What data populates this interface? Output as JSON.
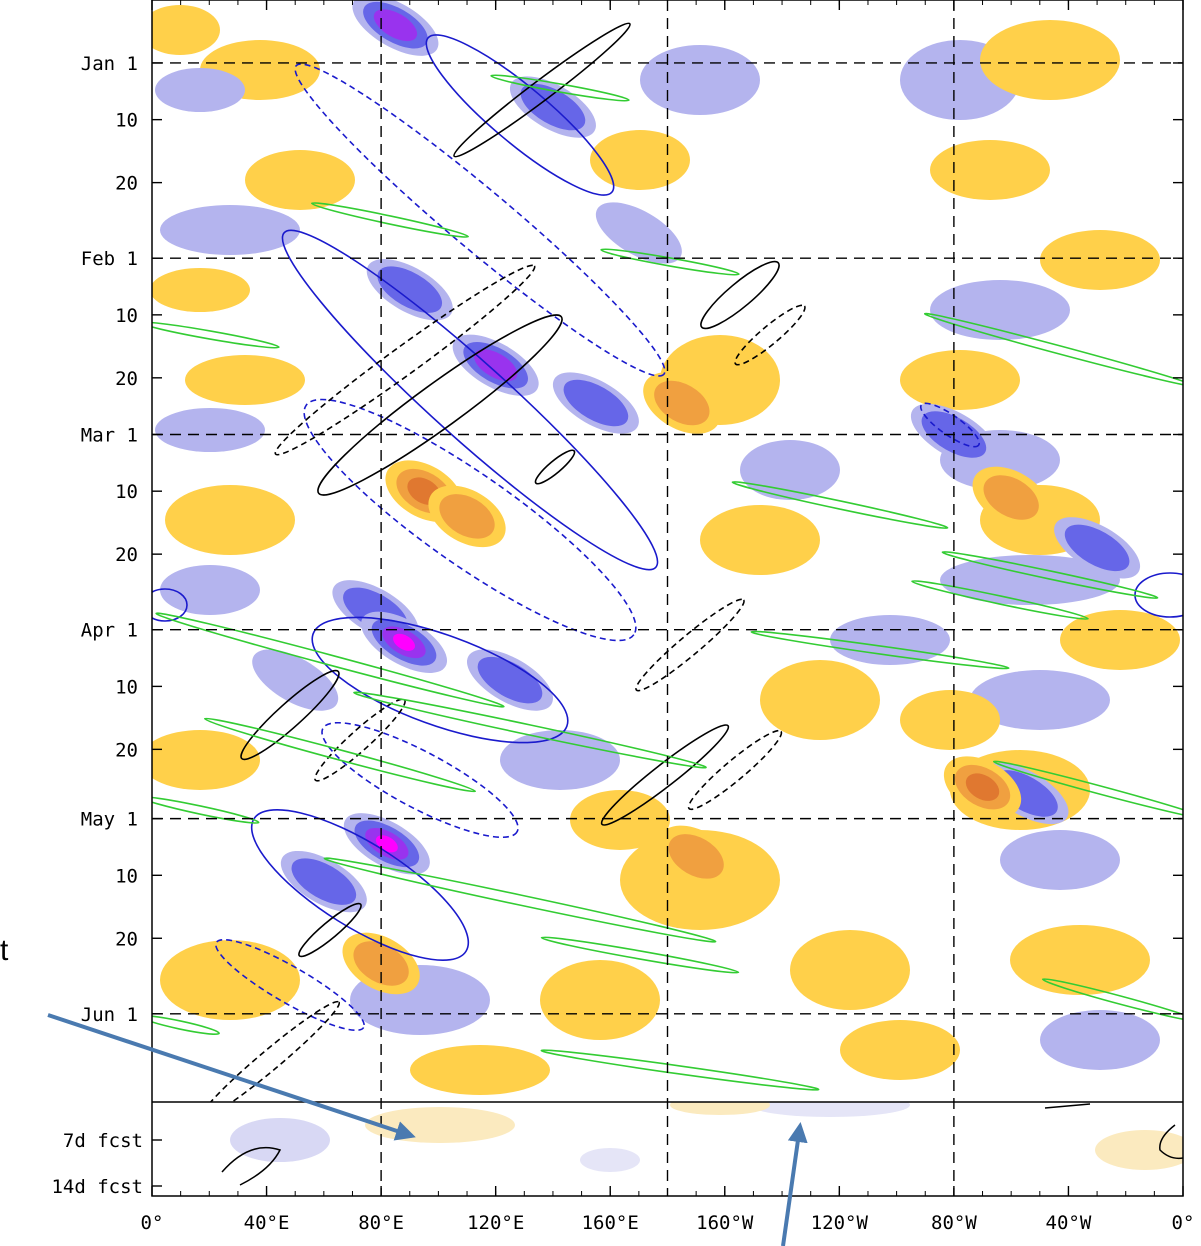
{
  "chart_data": {
    "type": "heatmap",
    "title": "",
    "xlabel": "",
    "ylabel": "",
    "x_ticks": [
      "0°",
      "40°E",
      "80°E",
      "120°E",
      "160°E",
      "160°W",
      "120°W",
      "80°W",
      "40°W",
      "0°"
    ],
    "x_range_deg_east": [
      0,
      360
    ],
    "y_ticks": [
      "Jan 1",
      "10",
      "20",
      "Feb 1",
      "10",
      "20",
      "Mar 1",
      "10",
      "20",
      "Apr 1",
      "10",
      "20",
      "May 1",
      "10",
      "20",
      "Jun 1"
    ],
    "forecast_labels": [
      "7d fcst",
      "14d fcst"
    ],
    "date_range": [
      "Dec 22",
      "Jun 15"
    ],
    "colors": {
      "neg_light": "#b4b4ee",
      "neg_mid": "#6666e8",
      "neg_strong": "#9933ee",
      "neg_extreme": "#ff00ff",
      "pos_light": "#ffd04a",
      "pos_mid": "#f0a040",
      "pos_strong": "#e07830",
      "contour_mjo": "#1a1acc",
      "contour_kelvin": "#33cc33",
      "contour_er": "#000000",
      "arrow": "#4a7ab0"
    },
    "grid": true,
    "grid_lines_lon": [
      "80°E",
      "180°",
      "80°W"
    ],
    "grid_lines_date": [
      "Jan 1",
      "Feb 1",
      "Mar 1",
      "Apr 1",
      "May 1",
      "Jun 1"
    ],
    "annotations": {
      "cutoff_text": "t",
      "arrows": 2
    },
    "negative_anomalies": [
      {
        "lon": 85,
        "date": "Dec 26",
        "level": 3
      },
      {
        "lon": 140,
        "date": "Jan 8",
        "level": 2
      },
      {
        "lon": 170,
        "date": "Jan 28",
        "level": 1
      },
      {
        "lon": 90,
        "date": "Feb 6",
        "level": 2
      },
      {
        "lon": 120,
        "date": "Feb 18",
        "level": 3
      },
      {
        "lon": 155,
        "date": "Feb 24",
        "level": 2
      },
      {
        "lon": 280,
        "date": "Mar 1",
        "level": 2
      },
      {
        "lon": 78,
        "date": "Mar 29",
        "level": 2
      },
      {
        "lon": 88,
        "date": "Apr 3",
        "level": 4
      },
      {
        "lon": 125,
        "date": "Apr 9",
        "level": 2
      },
      {
        "lon": 50,
        "date": "Apr 9",
        "level": 1
      },
      {
        "lon": 82,
        "date": "May 5",
        "level": 4
      },
      {
        "lon": 60,
        "date": "May 11",
        "level": 2
      },
      {
        "lon": 305,
        "date": "Apr 27",
        "level": 2
      },
      {
        "lon": 330,
        "date": "Mar 19",
        "level": 2
      }
    ],
    "positive_anomalies": [
      {
        "lon": 95,
        "date": "Mar 10",
        "level": 3
      },
      {
        "lon": 110,
        "date": "Mar 14",
        "level": 2
      },
      {
        "lon": 185,
        "date": "Feb 24",
        "level": 2
      },
      {
        "lon": 300,
        "date": "Mar 11",
        "level": 2
      },
      {
        "lon": 290,
        "date": "Apr 26",
        "level": 3
      },
      {
        "lon": 80,
        "date": "May 24",
        "level": 2
      },
      {
        "lon": 190,
        "date": "May 7",
        "level": 2
      }
    ]
  }
}
